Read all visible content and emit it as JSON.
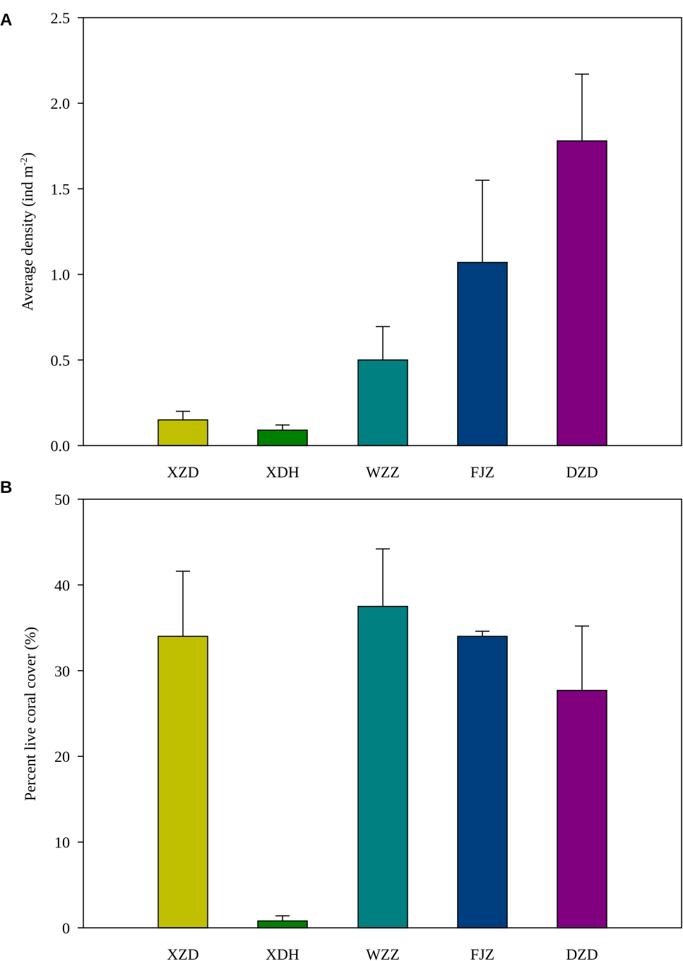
{
  "chart_data": [
    {
      "panel": "A",
      "type": "bar",
      "categories": [
        "XZD",
        "XDH",
        "WZZ",
        "FJZ",
        "DZD"
      ],
      "values": [
        0.15,
        0.09,
        0.5,
        1.07,
        1.78
      ],
      "error_plus": [
        0.05,
        0.03,
        0.195,
        0.48,
        0.39
      ],
      "colors": [
        "#c0c000",
        "#008000",
        "#008080",
        "#003f7f",
        "#800080"
      ],
      "ylabel_main": "Average density (ind m",
      "ylabel_sup": "-2",
      "ylabel_end": ")",
      "xlabel": "",
      "ylim": [
        0,
        2.5
      ],
      "yticks": [
        0,
        0.5,
        1.0,
        1.5,
        2.0,
        2.5
      ],
      "ytick_labels": [
        "0.0",
        "0.5",
        "1.0",
        "1.5",
        "2.0",
        "2.5"
      ]
    },
    {
      "panel": "B",
      "type": "bar",
      "categories": [
        "XZD",
        "XDH",
        "WZZ",
        "FJZ",
        "DZD"
      ],
      "values": [
        34,
        0.8,
        37.5,
        34,
        27.7
      ],
      "error_plus": [
        7.6,
        0.6,
        6.7,
        0.6,
        7.5
      ],
      "colors": [
        "#c0c000",
        "#008000",
        "#008080",
        "#003f7f",
        "#800080"
      ],
      "ylabel": "Percent live coral cover (%)",
      "xlabel": "",
      "ylim": [
        0,
        50
      ],
      "yticks": [
        0,
        10,
        20,
        30,
        40,
        50
      ],
      "ytick_labels": [
        "0",
        "10",
        "20",
        "30",
        "40",
        "50"
      ]
    }
  ]
}
